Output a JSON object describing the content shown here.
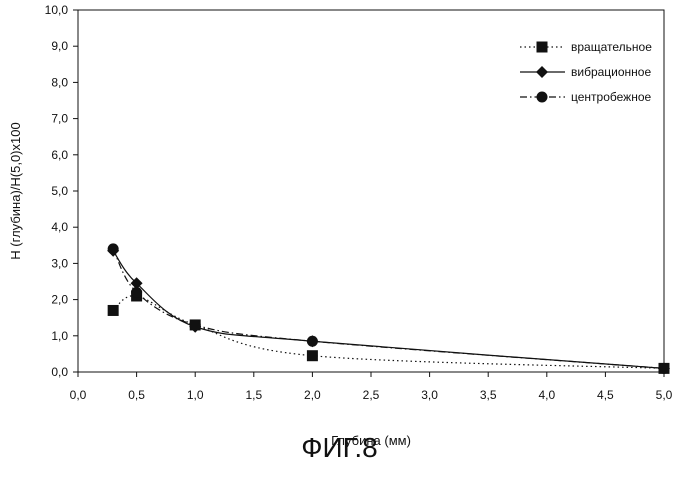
{
  "chart_data": {
    "type": "line",
    "xlabel": "Глубина (мм)",
    "ylabel": "Н (глубина)/Н(5,0)х100",
    "xlim": [
      0,
      5
    ],
    "ylim": [
      0,
      10
    ],
    "x_ticks": [
      "0,0",
      "0,5",
      "1,0",
      "1,5",
      "2,0",
      "2,5",
      "3,0",
      "3,5",
      "4,0",
      "4,5",
      "5,0"
    ],
    "y_ticks": [
      "0,0",
      "1,0",
      "2,0",
      "3,0",
      "4,0",
      "5,0",
      "6,0",
      "7,0",
      "8,0",
      "9,0",
      "10,0"
    ],
    "grid": false,
    "legend_position": "top-right",
    "series": [
      {
        "name": "вращательное",
        "marker": "square",
        "line_style": "dotted",
        "x": [
          0.3,
          0.5,
          1.0,
          2.0,
          5.0
        ],
        "y": [
          1.7,
          2.1,
          1.3,
          0.45,
          0.1
        ]
      },
      {
        "name": "вибрационное",
        "marker": "diamond",
        "line_style": "solid",
        "x": [
          0.3,
          0.5,
          1.0,
          2.0,
          5.0
        ],
        "y": [
          3.35,
          2.45,
          1.25,
          0.85,
          0.1
        ]
      },
      {
        "name": "центробежное",
        "marker": "circle",
        "line_style": "dash-dot",
        "x": [
          0.3,
          0.5,
          1.0,
          2.0,
          5.0
        ],
        "y": [
          3.4,
          2.2,
          1.3,
          0.85,
          0.1
        ]
      }
    ]
  },
  "caption": "ФИГ.8"
}
